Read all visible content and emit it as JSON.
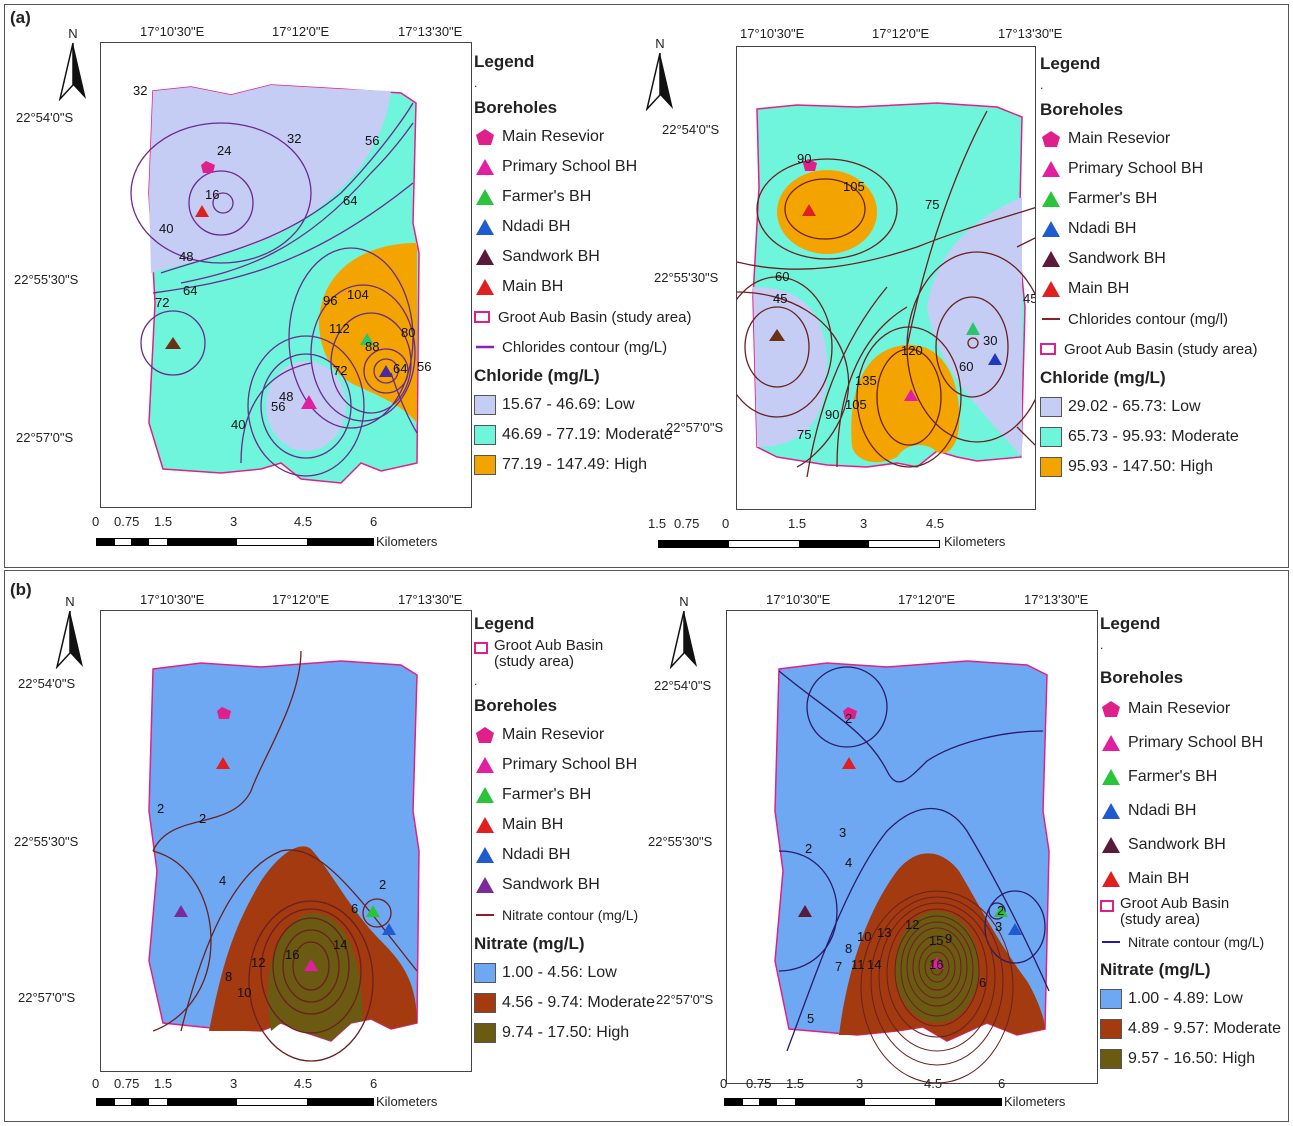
{
  "panels": {
    "a_label": "(a)",
    "b_label": "(b)"
  },
  "north": "N",
  "coords": {
    "lon1": "17°10'30\"E",
    "lon2": "17°12'0\"E",
    "lon3": "17°13'30\"E",
    "lat1": "22°54'0\"S",
    "lat2": "22°55'30\"S",
    "lat3": "22°57'0\"S"
  },
  "scale": {
    "std": [
      "0",
      "0.75",
      "1.5",
      "3",
      "4.5",
      "6"
    ],
    "shifted": [
      "1.5",
      "0.75",
      "0",
      "1.5",
      "3",
      "4.5"
    ],
    "units": "Kilometers"
  },
  "legend_common": {
    "title": "Legend",
    "dot": ".",
    "boreholes": "Boreholes",
    "main_reservoir": "Main Resevior",
    "primary_school": "Primary School BH",
    "farmer": "Farmer's BH",
    "ndadi": "Ndadi BH",
    "sandwork": "Sandwork BH",
    "main_bh": "Main BH",
    "basin": "Groot Aub Basin (study area)",
    "basin_wrapped_1": "Groot Aub Basin",
    "basin_wrapped_2": "(study area)"
  },
  "map_a1": {
    "contour_label": "Chlorides contour (mg/L)",
    "class_title": "Chloride (mg/L)",
    "classes": [
      "15.67 - 46.69: Low",
      "46.69 - 77.19: Moderate",
      "77.19 - 147.49: High"
    ],
    "contour_values": [
      "32",
      "24",
      "16",
      "32",
      "56",
      "64",
      "40",
      "48",
      "64",
      "72",
      "96",
      "104",
      "112",
      "80",
      "88",
      "72",
      "64",
      "56",
      "48",
      "40",
      "56"
    ]
  },
  "map_a2": {
    "contour_label": "Chlorides contour (mg/l)",
    "class_title": "Chloride (mg/L)",
    "classes": [
      "29.02 - 65.73: Low",
      "65.73 - 95.93: Moderate",
      "95.93 - 147.50: High"
    ],
    "contour_values": [
      "90",
      "105",
      "75",
      "60",
      "45",
      "45",
      "30",
      "60",
      "120",
      "135",
      "105",
      "90",
      "75"
    ]
  },
  "map_b1": {
    "contour_label": "Nitrate contour (mg/L)",
    "class_title": "Nitrate (mg/L)",
    "classes": [
      "1.00 - 4.56: Low",
      "4.56 - 9.74: Moderate",
      "9.74 - 17.50: High"
    ],
    "contour_values": [
      "2",
      "2",
      "4",
      "2",
      "6",
      "8",
      "10",
      "12",
      "14",
      "16"
    ]
  },
  "map_b2": {
    "contour_label": "Nitrate contour (mg/L)",
    "class_title": "Nitrate (mg/L)",
    "classes": [
      "1.00 - 4.89: Low",
      "4.89 - 9.57: Moderate",
      "9.57 - 16.50: High"
    ],
    "contour_values": [
      "2",
      "3",
      "2",
      "4",
      "7",
      "8",
      "10",
      "11",
      "13",
      "14",
      "12",
      "16",
      "15",
      "9",
      "6",
      "5",
      "2",
      "3"
    ]
  },
  "colors": {
    "low_a": "#c5cdf5",
    "mod_a": "#6ff5dc",
    "high_a": "#f3a400",
    "low_b": "#6fa8f2",
    "mod_b": "#a33a10",
    "high_b": "#6b5a12",
    "contour_a": "#6a2a8a",
    "contour_b": "#6b1f1f",
    "basin": "#e0208a"
  }
}
